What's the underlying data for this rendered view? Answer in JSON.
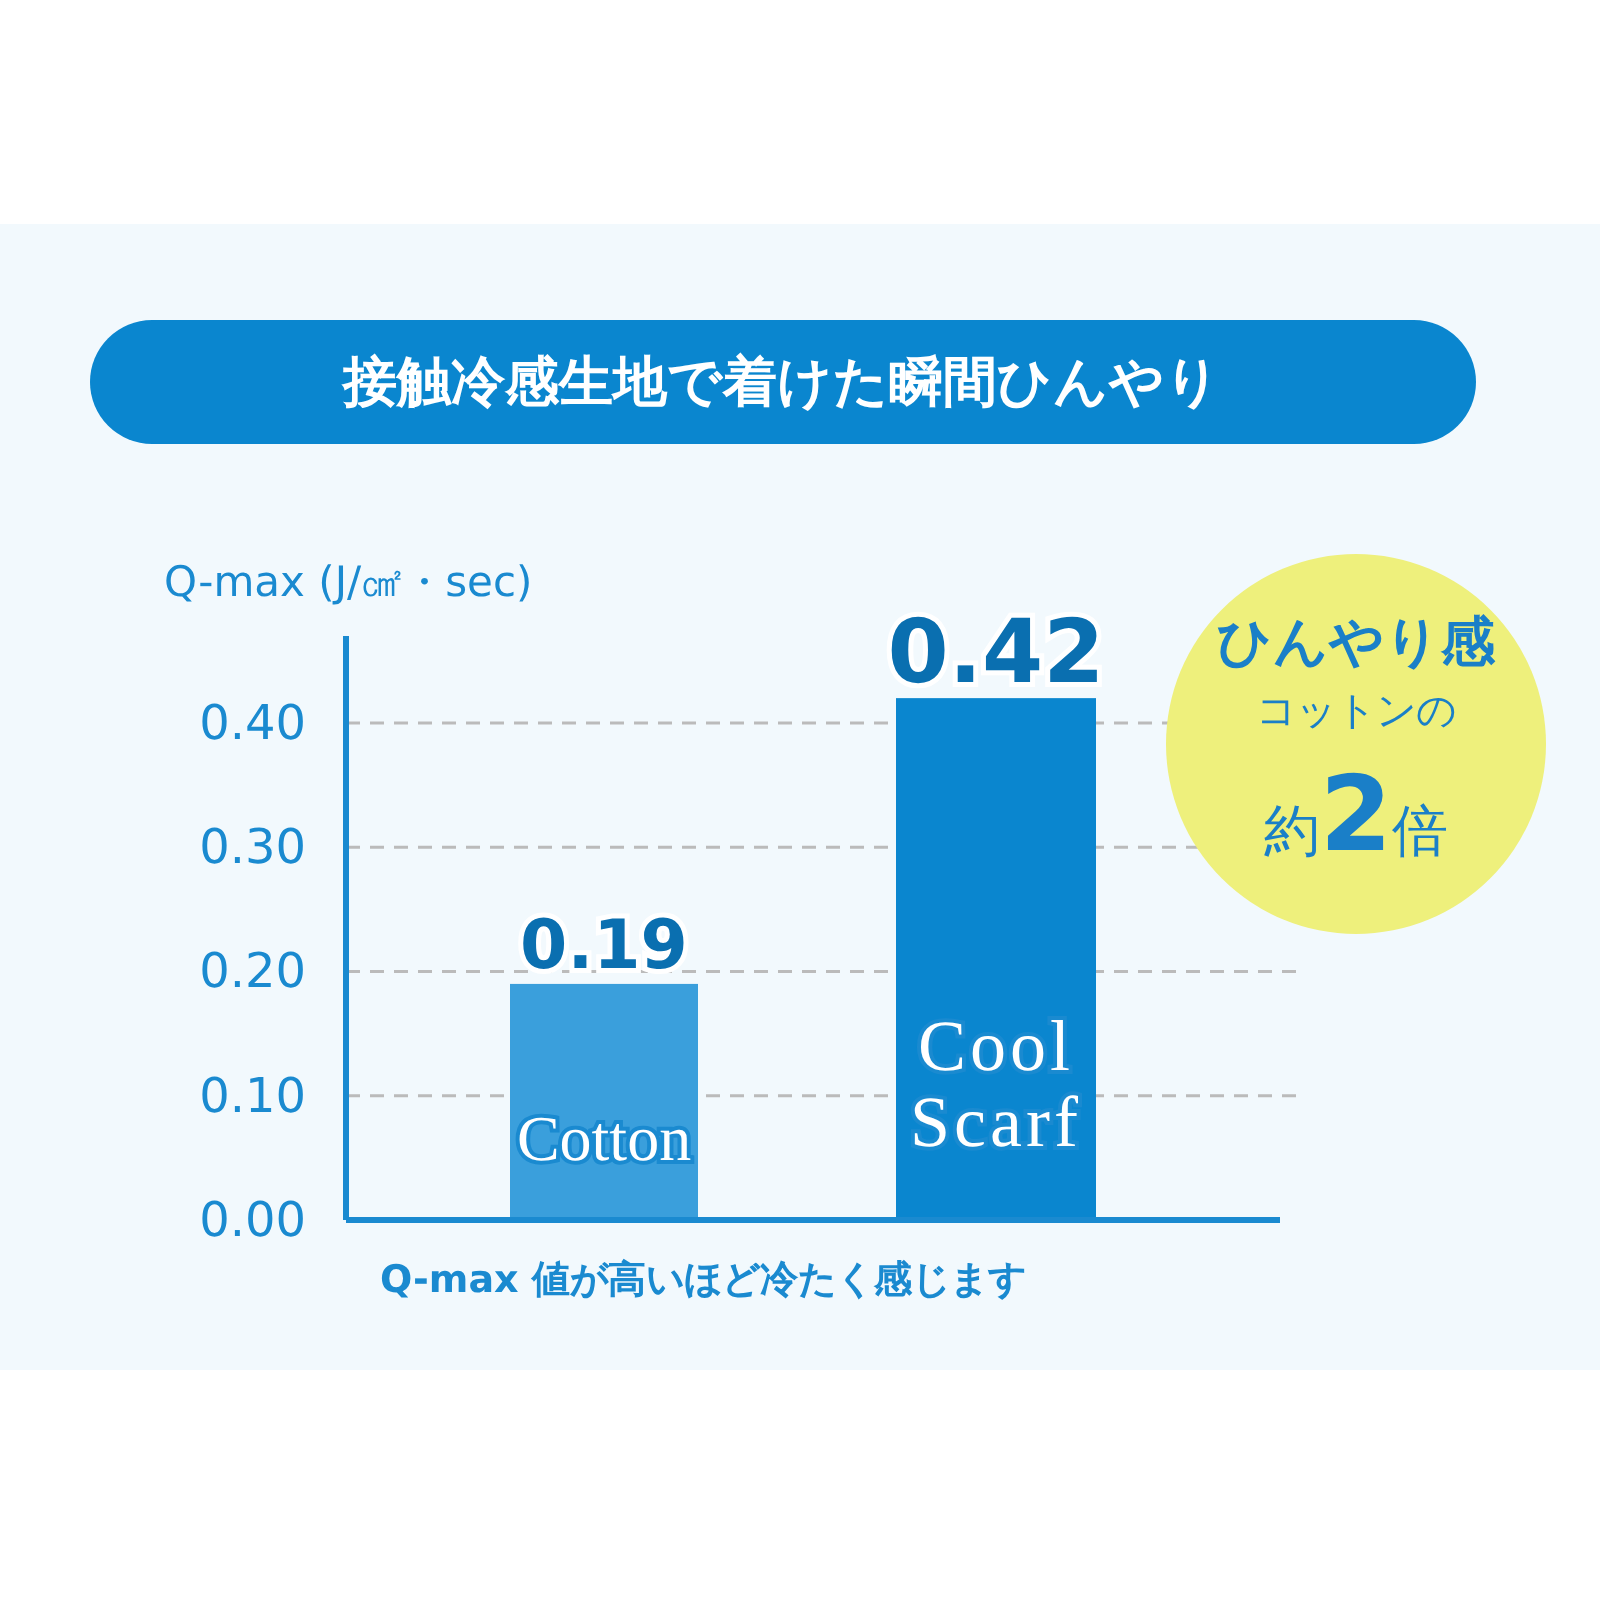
{
  "chart_data": {
    "type": "bar",
    "title": "接触冷感生地で着けた瞬間ひんやり",
    "ylabel": "Q-max (J/㎠・sec)",
    "categories": [
      "Cotton",
      "Cool Scarf"
    ],
    "values": [
      0.19,
      0.42
    ],
    "colors": [
      "#3a9fdc",
      "#0a86cf"
    ],
    "ylim": [
      0,
      0.47
    ],
    "yticks": [
      {
        "value": 0,
        "label": "0.00"
      },
      {
        "value": 0.1,
        "label": "0.10"
      },
      {
        "value": 0.2,
        "label": "0.20"
      },
      {
        "value": 0.3,
        "label": "0.30"
      },
      {
        "value": 0.4,
        "label": "0.40"
      }
    ],
    "grid": "y",
    "data_labels": true,
    "annotations": [
      "Q-max 値が高いほど冷たく感じます",
      "ひんやり感",
      "コットンの",
      "約2倍"
    ]
  }
}
